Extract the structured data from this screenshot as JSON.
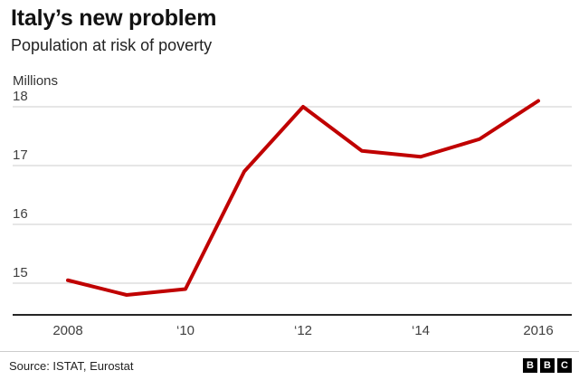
{
  "header": {
    "title": "Italy’s new problem",
    "subtitle": "Population at risk of poverty"
  },
  "chart_data": {
    "type": "line",
    "title": "Italy’s new problem",
    "subtitle": "Population at risk of poverty",
    "ylabel": "Millions",
    "x": [
      2008,
      2009,
      2010,
      2011,
      2012,
      2013,
      2014,
      2015,
      2016
    ],
    "values": [
      15.05,
      14.8,
      14.9,
      16.9,
      18.0,
      17.25,
      17.15,
      17.45,
      18.1
    ],
    "yticks": [
      15,
      16,
      17,
      18
    ],
    "ylim": [
      14.45,
      18.3
    ],
    "xticks": [
      {
        "label": "2008",
        "index": 0
      },
      {
        "label": "‘10",
        "index": 2
      },
      {
        "label": "‘12",
        "index": 4
      },
      {
        "label": "‘14",
        "index": 6
      },
      {
        "label": "2016",
        "index": 8
      }
    ],
    "grid": "horizontal",
    "legend": "none",
    "colors": {
      "line": "#c00000",
      "grid": "#cccccc",
      "axis": "#262626",
      "text": "#404040"
    }
  },
  "footer": {
    "source": "Source: ISTAT, Eurostat",
    "logo_letters": [
      "B",
      "B",
      "C"
    ]
  }
}
